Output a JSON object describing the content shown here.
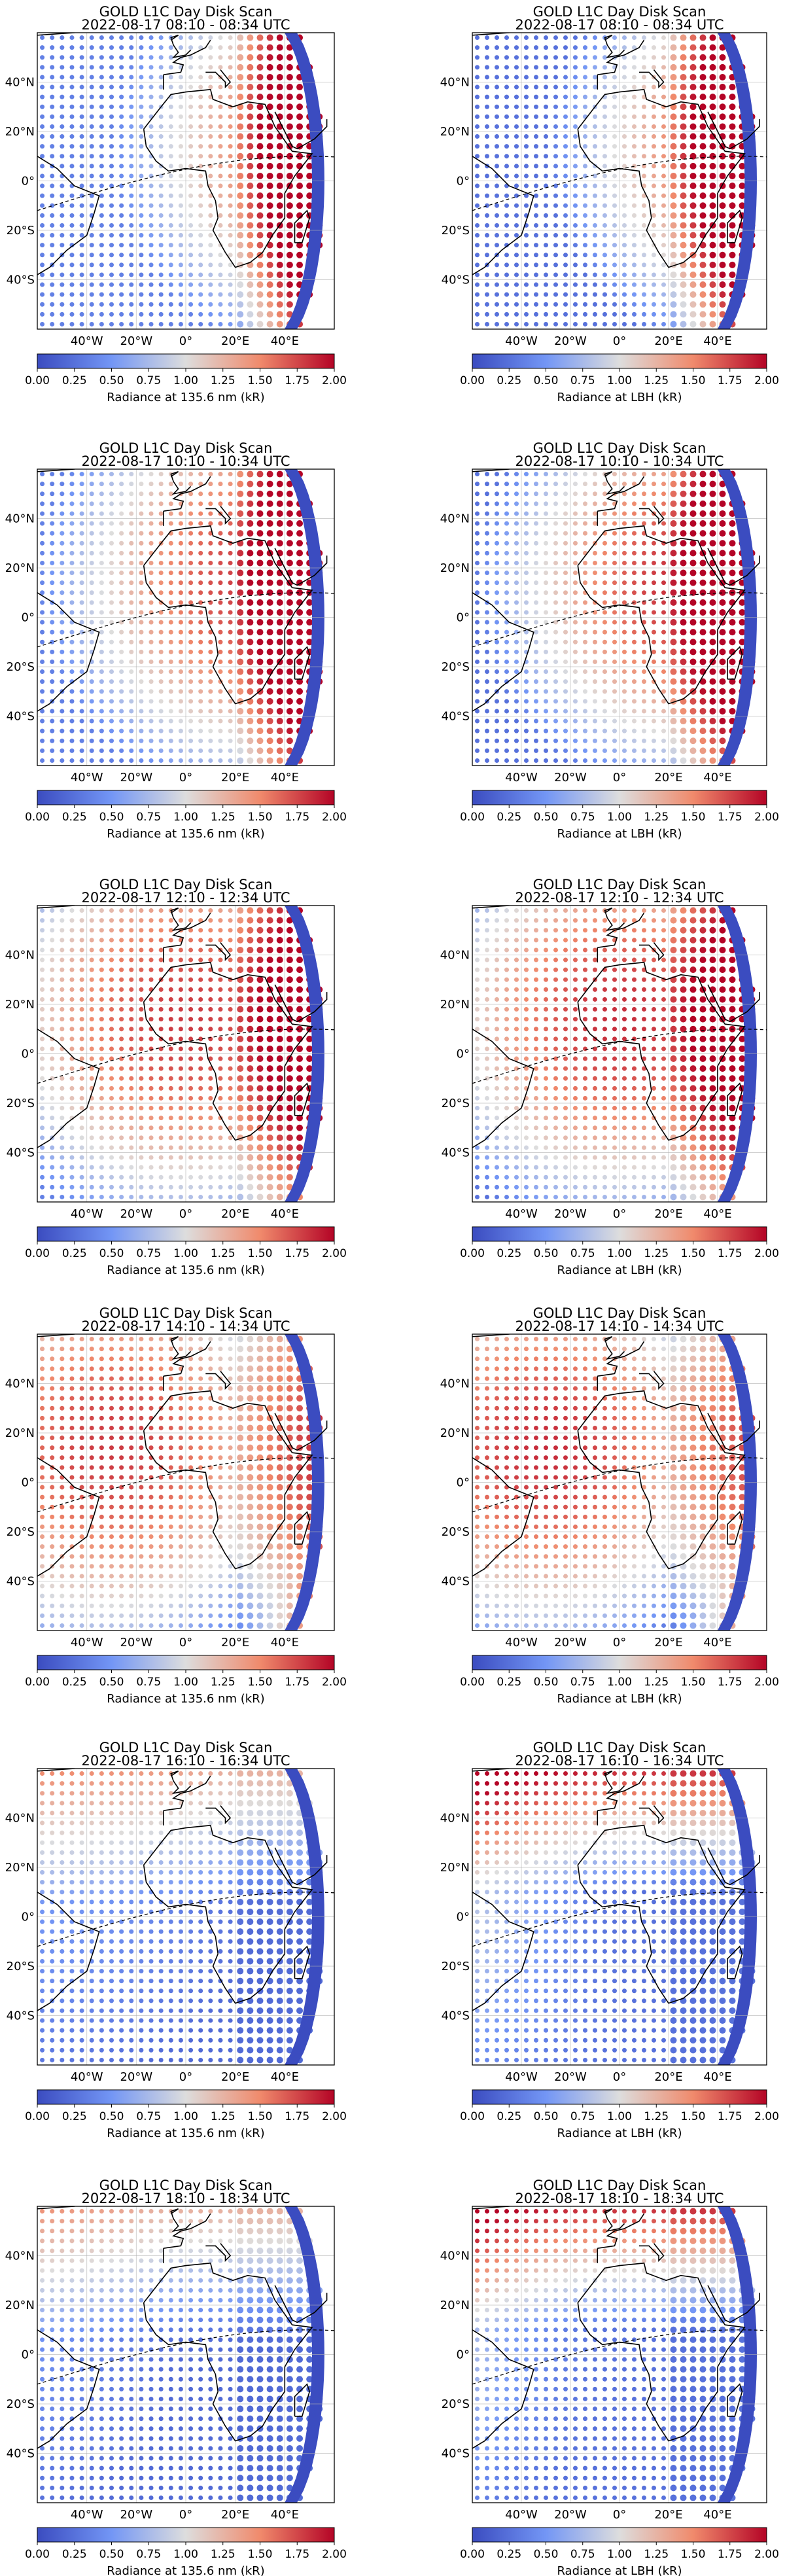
{
  "colors": {
    "cmap": [
      "#3b4cc0",
      "#7396f5",
      "#dddddd",
      "#f08a6c",
      "#b40426"
    ],
    "coast": "#000000",
    "grid": "#b0b0b0"
  },
  "chart_data": [
    {
      "type": "map-scatter",
      "title": "GOLD L1C Day Disk Scan",
      "subtitle": "2022-08-17 08:10 - 08:34 UTC",
      "colorbar_label": "Radiance at 135.6 nm (kR)",
      "band": "135.6",
      "hour": 8,
      "clim": [
        0,
        2
      ],
      "colorbar_ticks": [
        "0.00",
        "0.25",
        "0.50",
        "0.75",
        "1.00",
        "1.25",
        "1.50",
        "1.75",
        "2.00"
      ],
      "lon_ticks": [
        "40°W",
        "20°W",
        "0°",
        "20°E",
        "40°E"
      ],
      "lat_ticks": [
        "40°N",
        "20°N",
        "0°",
        "20°S",
        "40°S"
      ],
      "xlim": [
        -60,
        60
      ],
      "ylim": [
        -60,
        60
      ],
      "grid": true
    },
    {
      "type": "map-scatter",
      "title": "GOLD L1C Day Disk Scan",
      "subtitle": "2022-08-17 08:10 - 08:34 UTC",
      "colorbar_label": "Radiance at LBH (kR)",
      "band": "LBH",
      "hour": 8,
      "clim": [
        0,
        2
      ],
      "colorbar_ticks": [
        "0.00",
        "0.25",
        "0.50",
        "0.75",
        "1.00",
        "1.25",
        "1.50",
        "1.75",
        "2.00"
      ],
      "lon_ticks": [
        "40°W",
        "20°W",
        "0°",
        "20°E",
        "40°E"
      ],
      "lat_ticks": [
        "40°N",
        "20°N",
        "0°",
        "20°S",
        "40°S"
      ],
      "xlim": [
        -60,
        60
      ],
      "ylim": [
        -60,
        60
      ],
      "grid": true
    },
    {
      "type": "map-scatter",
      "title": "GOLD L1C Day Disk Scan",
      "subtitle": "2022-08-17 10:10 - 10:34 UTC",
      "colorbar_label": "Radiance at 135.6 nm (kR)",
      "band": "135.6",
      "hour": 10,
      "clim": [
        0,
        2
      ],
      "colorbar_ticks": [
        "0.00",
        "0.25",
        "0.50",
        "0.75",
        "1.00",
        "1.25",
        "1.50",
        "1.75",
        "2.00"
      ],
      "lon_ticks": [
        "40°W",
        "20°W",
        "0°",
        "20°E",
        "40°E"
      ],
      "lat_ticks": [
        "40°N",
        "20°N",
        "0°",
        "20°S",
        "40°S"
      ],
      "xlim": [
        -60,
        60
      ],
      "ylim": [
        -60,
        60
      ],
      "grid": true
    },
    {
      "type": "map-scatter",
      "title": "GOLD L1C Day Disk Scan",
      "subtitle": "2022-08-17 10:10 - 10:34 UTC",
      "colorbar_label": "Radiance at LBH (kR)",
      "band": "LBH",
      "hour": 10,
      "clim": [
        0,
        2
      ],
      "colorbar_ticks": [
        "0.00",
        "0.25",
        "0.50",
        "0.75",
        "1.00",
        "1.25",
        "1.50",
        "1.75",
        "2.00"
      ],
      "lon_ticks": [
        "40°W",
        "20°W",
        "0°",
        "20°E",
        "40°E"
      ],
      "lat_ticks": [
        "40°N",
        "20°N",
        "0°",
        "20°S",
        "40°S"
      ],
      "xlim": [
        -60,
        60
      ],
      "ylim": [
        -60,
        60
      ],
      "grid": true
    },
    {
      "type": "map-scatter",
      "title": "GOLD L1C Day Disk Scan",
      "subtitle": "2022-08-17 12:10 - 12:34 UTC",
      "colorbar_label": "Radiance at 135.6 nm (kR)",
      "band": "135.6",
      "hour": 12,
      "clim": [
        0,
        2
      ],
      "colorbar_ticks": [
        "0.00",
        "0.25",
        "0.50",
        "0.75",
        "1.00",
        "1.25",
        "1.50",
        "1.75",
        "2.00"
      ],
      "lon_ticks": [
        "40°W",
        "20°W",
        "0°",
        "20°E",
        "40°E"
      ],
      "lat_ticks": [
        "40°N",
        "20°N",
        "0°",
        "20°S",
        "40°S"
      ],
      "xlim": [
        -60,
        60
      ],
      "ylim": [
        -60,
        60
      ],
      "grid": true
    },
    {
      "type": "map-scatter",
      "title": "GOLD L1C Day Disk Scan",
      "subtitle": "2022-08-17 12:10 - 12:34 UTC",
      "colorbar_label": "Radiance at LBH (kR)",
      "band": "LBH",
      "hour": 12,
      "clim": [
        0,
        2
      ],
      "colorbar_ticks": [
        "0.00",
        "0.25",
        "0.50",
        "0.75",
        "1.00",
        "1.25",
        "1.50",
        "1.75",
        "2.00"
      ],
      "lon_ticks": [
        "40°W",
        "20°W",
        "0°",
        "20°E",
        "40°E"
      ],
      "lat_ticks": [
        "40°N",
        "20°N",
        "0°",
        "20°S",
        "40°S"
      ],
      "xlim": [
        -60,
        60
      ],
      "ylim": [
        -60,
        60
      ],
      "grid": true
    },
    {
      "type": "map-scatter",
      "title": "GOLD L1C Day Disk Scan",
      "subtitle": "2022-08-17 14:10 - 14:34 UTC",
      "colorbar_label": "Radiance at 135.6 nm (kR)",
      "band": "135.6",
      "hour": 14,
      "clim": [
        0,
        2
      ],
      "colorbar_ticks": [
        "0.00",
        "0.25",
        "0.50",
        "0.75",
        "1.00",
        "1.25",
        "1.50",
        "1.75",
        "2.00"
      ],
      "lon_ticks": [
        "40°W",
        "20°W",
        "0°",
        "20°E",
        "40°E"
      ],
      "lat_ticks": [
        "40°N",
        "20°N",
        "0°",
        "20°S",
        "40°S"
      ],
      "xlim": [
        -60,
        60
      ],
      "ylim": [
        -60,
        60
      ],
      "grid": true
    },
    {
      "type": "map-scatter",
      "title": "GOLD L1C Day Disk Scan",
      "subtitle": "2022-08-17 14:10 - 14:34 UTC",
      "colorbar_label": "Radiance at LBH (kR)",
      "band": "LBH",
      "hour": 14,
      "clim": [
        0,
        2
      ],
      "colorbar_ticks": [
        "0.00",
        "0.25",
        "0.50",
        "0.75",
        "1.00",
        "1.25",
        "1.50",
        "1.75",
        "2.00"
      ],
      "lon_ticks": [
        "40°W",
        "20°W",
        "0°",
        "20°E",
        "40°E"
      ],
      "lat_ticks": [
        "40°N",
        "20°N",
        "0°",
        "20°S",
        "40°S"
      ],
      "xlim": [
        -60,
        60
      ],
      "ylim": [
        -60,
        60
      ],
      "grid": true
    },
    {
      "type": "map-scatter",
      "title": "GOLD L1C Day Disk Scan",
      "subtitle": "2022-08-17 16:10 - 16:34 UTC",
      "colorbar_label": "Radiance at 135.6 nm (kR)",
      "band": "135.6",
      "hour": 16,
      "clim": [
        0,
        2
      ],
      "colorbar_ticks": [
        "0.00",
        "0.25",
        "0.50",
        "0.75",
        "1.00",
        "1.25",
        "1.50",
        "1.75",
        "2.00"
      ],
      "lon_ticks": [
        "40°W",
        "20°W",
        "0°",
        "20°E",
        "40°E"
      ],
      "lat_ticks": [
        "40°N",
        "20°N",
        "0°",
        "20°S",
        "40°S"
      ],
      "xlim": [
        -60,
        60
      ],
      "ylim": [
        -60,
        60
      ],
      "grid": true
    },
    {
      "type": "map-scatter",
      "title": "GOLD L1C Day Disk Scan",
      "subtitle": "2022-08-17 16:10 - 16:34 UTC",
      "colorbar_label": "Radiance at LBH (kR)",
      "band": "LBH",
      "hour": 16,
      "clim": [
        0,
        2
      ],
      "colorbar_ticks": [
        "0.00",
        "0.25",
        "0.50",
        "0.75",
        "1.00",
        "1.25",
        "1.50",
        "1.75",
        "2.00"
      ],
      "lon_ticks": [
        "40°W",
        "20°W",
        "0°",
        "20°E",
        "40°E"
      ],
      "lat_ticks": [
        "40°N",
        "20°N",
        "0°",
        "20°S",
        "40°S"
      ],
      "xlim": [
        -60,
        60
      ],
      "ylim": [
        -60,
        60
      ],
      "grid": true
    },
    {
      "type": "map-scatter",
      "title": "GOLD L1C Day Disk Scan",
      "subtitle": "2022-08-17 18:10 - 18:34 UTC",
      "colorbar_label": "Radiance at 135.6 nm (kR)",
      "band": "135.6",
      "hour": 18,
      "clim": [
        0,
        2
      ],
      "colorbar_ticks": [
        "0.00",
        "0.25",
        "0.50",
        "0.75",
        "1.00",
        "1.25",
        "1.50",
        "1.75",
        "2.00"
      ],
      "lon_ticks": [
        "40°W",
        "20°W",
        "0°",
        "20°E",
        "40°E"
      ],
      "lat_ticks": [
        "40°N",
        "20°N",
        "0°",
        "20°S",
        "40°S"
      ],
      "xlim": [
        -60,
        60
      ],
      "ylim": [
        -60,
        60
      ],
      "grid": true
    },
    {
      "type": "map-scatter",
      "title": "GOLD L1C Day Disk Scan",
      "subtitle": "2022-08-17 18:10 - 18:34 UTC",
      "colorbar_label": "Radiance at LBH (kR)",
      "band": "LBH",
      "hour": 18,
      "clim": [
        0,
        2
      ],
      "colorbar_ticks": [
        "0.00",
        "0.25",
        "0.50",
        "0.75",
        "1.00",
        "1.25",
        "1.50",
        "1.75",
        "2.00"
      ],
      "lon_ticks": [
        "40°W",
        "20°W",
        "0°",
        "20°E",
        "40°E"
      ],
      "lat_ticks": [
        "40°N",
        "20°N",
        "0°",
        "20°S",
        "40°S"
      ],
      "xlim": [
        -60,
        60
      ],
      "ylim": [
        -60,
        60
      ],
      "grid": true
    }
  ]
}
